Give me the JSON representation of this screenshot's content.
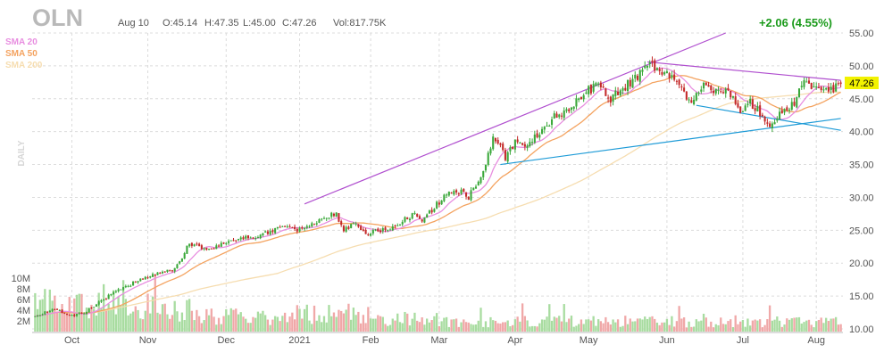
{
  "header": {
    "ticker": "OLN",
    "date": "Aug 10",
    "open": "O:45.14",
    "high": "H:47.35",
    "low": "L:45.00",
    "close": "C:47.26",
    "volume": "Vol:817.75K",
    "change": "+2.06 (4.55%)"
  },
  "legend": [
    {
      "label": "SMA 20",
      "color": "#e88ee0"
    },
    {
      "label": "SMA 50",
      "color": "#f4a360"
    },
    {
      "label": "SMA 200",
      "color": "#f6ddb0"
    }
  ],
  "period_label": "DAILY",
  "colors": {
    "up": "#3aa83a",
    "down": "#c42a2a",
    "vol_up": "#a8dca0",
    "vol_down": "#f0a8a8",
    "trend_purple": "#b04fcf",
    "trend_blue": "#1e9bd7",
    "change_green": "#1a9a1a",
    "price_tag_bg": "#f2f200"
  },
  "chart_data": {
    "type": "candlestick",
    "price_axis": {
      "ticks": [
        10,
        15,
        20,
        25,
        30,
        35,
        40,
        45,
        50,
        55
      ],
      "tick_labels": [
        "10.00",
        "15.00",
        "20.00",
        "25.00",
        "30.00",
        "35.00",
        "40.00",
        "45.00",
        "50.00",
        "55.00"
      ],
      "range": [
        10,
        55
      ]
    },
    "volume_axis": {
      "ticks": [
        2,
        4,
        6,
        8,
        10
      ],
      "tick_labels": [
        "2M",
        "4M",
        "6M",
        "8M",
        "10M"
      ],
      "range": [
        0,
        11
      ]
    },
    "x_labels": [
      "Oct",
      "Nov",
      "Dec",
      "2021",
      "Feb",
      "Mar",
      "Apr",
      "May",
      "Jun",
      "Jul",
      "Aug"
    ],
    "last_price": "47.26",
    "price_path": [
      [
        0,
        12.0
      ],
      [
        8,
        13.0
      ],
      [
        15,
        12.0
      ],
      [
        20,
        12.5
      ],
      [
        30,
        15.0
      ],
      [
        40,
        17.0
      ],
      [
        50,
        18.5
      ],
      [
        57,
        19.0
      ],
      [
        63,
        23.0
      ],
      [
        70,
        22.0
      ],
      [
        80,
        23.5
      ],
      [
        90,
        24.0
      ],
      [
        100,
        25.5
      ],
      [
        110,
        25.0
      ],
      [
        117,
        27.0
      ],
      [
        123,
        27.5
      ],
      [
        126,
        25.0
      ],
      [
        130,
        26.0
      ],
      [
        135,
        24.5
      ],
      [
        140,
        25.0
      ],
      [
        145,
        25.0
      ],
      [
        150,
        26.5
      ],
      [
        155,
        27.5
      ],
      [
        158,
        26.5
      ],
      [
        163,
        28.5
      ],
      [
        168,
        30.5
      ],
      [
        173,
        31.0
      ],
      [
        177,
        30.0
      ],
      [
        183,
        34.0
      ],
      [
        187,
        39.0
      ],
      [
        190,
        38.0
      ],
      [
        192,
        36.0
      ],
      [
        196,
        38.5
      ],
      [
        200,
        38.0
      ],
      [
        206,
        39.5
      ],
      [
        212,
        42.5
      ],
      [
        218,
        43.0
      ],
      [
        224,
        46.0
      ],
      [
        230,
        47.0
      ],
      [
        235,
        45.0
      ],
      [
        240,
        46.5
      ],
      [
        246,
        48.5
      ],
      [
        250,
        50.5
      ],
      [
        255,
        49.5
      ],
      [
        260,
        48.0
      ],
      [
        264,
        46.5
      ],
      [
        268,
        44.5
      ],
      [
        272,
        47.0
      ],
      [
        277,
        46.5
      ],
      [
        283,
        46.0
      ],
      [
        288,
        43.0
      ],
      [
        292,
        44.5
      ],
      [
        296,
        43.0
      ],
      [
        300,
        41.0
      ],
      [
        305,
        43.0
      ],
      [
        310,
        44.5
      ],
      [
        314,
        47.5
      ],
      [
        318,
        46.5
      ],
      [
        322,
        46.0
      ],
      [
        326,
        46.5
      ],
      [
        329,
        47.26
      ]
    ],
    "volume_levels": [
      0.6,
      0.45,
      0.3,
      0.35,
      0.25,
      0.2,
      0.2,
      0.2,
      0.18,
      0.2
    ],
    "sma_lag": {
      "sma20": 10,
      "sma50": 25,
      "sma200": 100
    },
    "trendlines": [
      {
        "color": "purple",
        "from": [
          110,
          29.0
        ],
        "to": [
          282,
          55.0
        ]
      },
      {
        "color": "purple",
        "from": [
          250,
          50.6
        ],
        "to": [
          329,
          47.8
        ]
      },
      {
        "color": "blue",
        "from": [
          190,
          35.0
        ],
        "to": [
          329,
          42.0
        ]
      },
      {
        "color": "blue",
        "from": [
          270,
          44.0
        ],
        "to": [
          329,
          40.2
        ]
      }
    ]
  }
}
